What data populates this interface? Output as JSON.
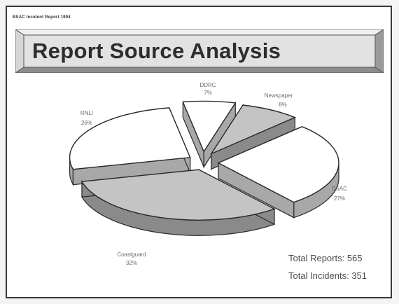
{
  "header": {
    "small_title": "BSAC Incident Report 1994",
    "title": "Report Source Analysis"
  },
  "totals": {
    "reports": "Total Reports: 565",
    "incidents": "Total Incidents: 351"
  },
  "colors": {
    "white_slice": "#ffffff",
    "grey_slice": "#c4c4c4",
    "side_white": "#a8a8a8",
    "side_grey": "#8a8a8a",
    "outline": "#2a2a2a"
  },
  "chart_data": {
    "type": "pie",
    "style": "3d-exploded",
    "title": "Report Source Analysis",
    "slices": [
      {
        "name": "DDRC",
        "percent": "7%",
        "value": 7
      },
      {
        "name": "Newspaper",
        "percent": "8%",
        "value": 8
      },
      {
        "name": "BSAC",
        "percent": "27%",
        "value": 27
      },
      {
        "name": "Coastguard",
        "percent": "32%",
        "value": 32
      },
      {
        "name": "RNLI",
        "percent": "26%",
        "value": 26
      }
    ]
  }
}
